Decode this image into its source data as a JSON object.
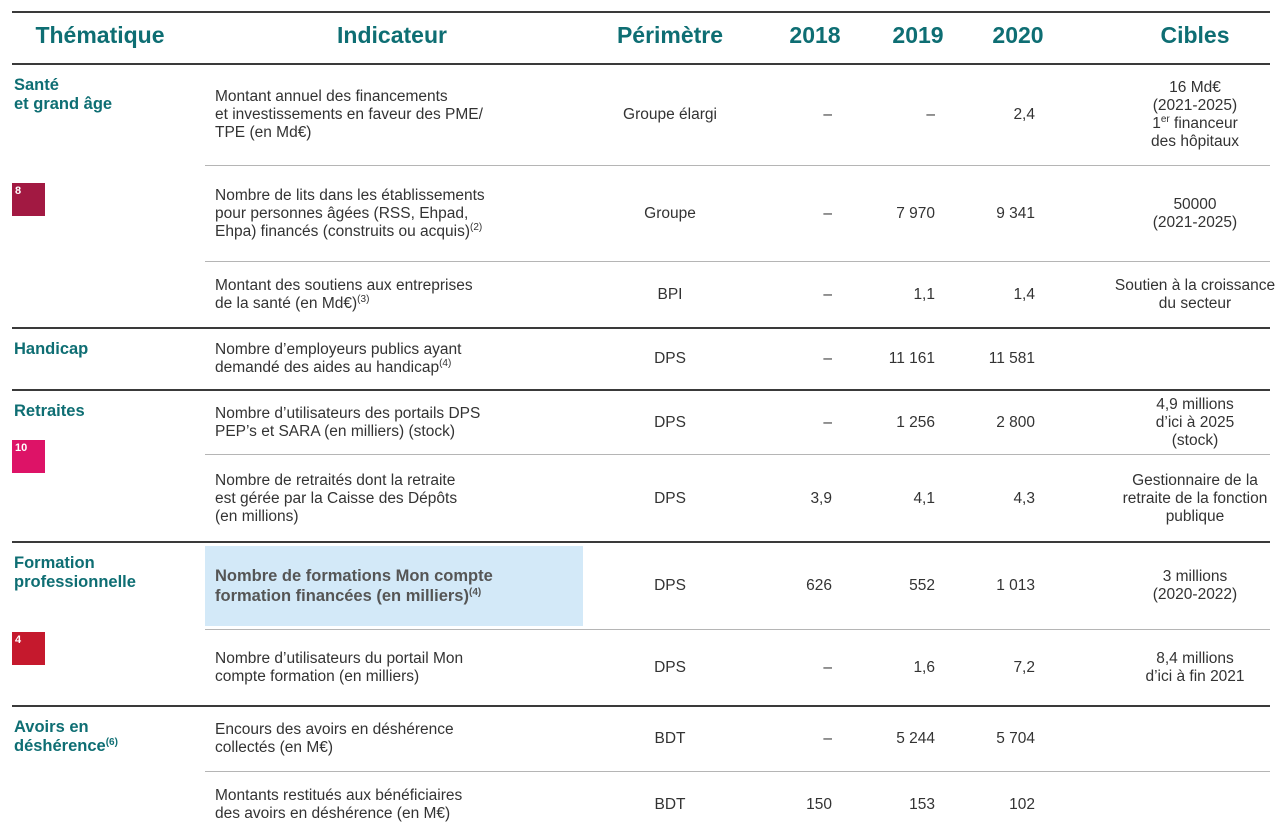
{
  "header": [
    "Thématique",
    "Indicateur",
    "Périmètre",
    "2018",
    "2019",
    "2020",
    "Cibles"
  ],
  "groups": [
    {
      "theme": [
        "Santé",
        "et grand âge"
      ],
      "sdg": {
        "label": "8",
        "color": "#a21942"
      },
      "rows": [
        {
          "indicator": [
            "Montant annuel des financements",
            "et investissements en faveur des PME/",
            "TPE (en Md€)"
          ],
          "perimeter": "Groupe élargi",
          "values": [
            "–",
            "–",
            "2,4"
          ],
          "target": [
            "16 Md€",
            "(2021-2025)",
            [
              "1",
              "er",
              " financeur"
            ],
            "des hôpitaux"
          ]
        },
        {
          "indicator": [
            "Nombre de lits dans les établissements",
            "pour personnes âgées (RSS, Ehpad,",
            [
              "Ehpa) financés (construits ou acquis)",
              "(2)"
            ]
          ],
          "perimeter": "Groupe",
          "values": [
            "–",
            "7 970",
            "9 341"
          ],
          "target": [
            "50000",
            "(2021-2025)"
          ]
        },
        {
          "indicator": [
            "Montant des soutiens aux entreprises",
            [
              "de la santé (en Md€)",
              "(3)"
            ]
          ],
          "perimeter": "BPI",
          "values": [
            "–",
            "1,1",
            "1,4"
          ],
          "target": [
            "Soutien à la croissance",
            "du secteur"
          ]
        }
      ]
    },
    {
      "theme": [
        "Handicap"
      ],
      "rows": [
        {
          "indicator": [
            "Nombre d’employeurs publics ayant",
            [
              "demandé des aides au handicap",
              "(4)"
            ]
          ],
          "perimeter": "DPS",
          "values": [
            "–",
            "11 161",
            "11 581"
          ],
          "target": []
        }
      ]
    },
    {
      "theme": [
        "Retraites"
      ],
      "sdg": {
        "label": "10",
        "color": "#dd1367"
      },
      "rows": [
        {
          "indicator": [
            "Nombre d’utilisateurs des portails DPS",
            "PEP’s et SARA (en milliers) (stock)"
          ],
          "perimeter": "DPS",
          "values": [
            "–",
            "1 256",
            "2 800"
          ],
          "target": [
            "4,9 millions",
            "d’ici à 2025",
            "(stock)"
          ]
        },
        {
          "indicator": [
            "Nombre de retraités dont la retraite",
            "est gérée par la Caisse des Dépôts",
            "(en millions)"
          ],
          "perimeter": "DPS",
          "values": [
            "3,9",
            "4,1",
            "4,3"
          ],
          "target": [
            "Gestionnaire de la",
            "retraite de la fonction",
            "publique"
          ]
        }
      ]
    },
    {
      "theme": [
        "Formation",
        "professionnelle"
      ],
      "sdg": {
        "label": "4",
        "color": "#c5192d"
      },
      "rows": [
        {
          "indicator": [
            "Nombre de formations Mon compte",
            [
              "formation financées (en milliers)",
              "(4)"
            ]
          ],
          "highlight": true,
          "perimeter": "DPS",
          "values": [
            "626",
            "552",
            "1 013"
          ],
          "target": [
            "3 millions",
            "(2020-2022)"
          ]
        },
        {
          "indicator": [
            "Nombre d’utilisateurs du portail Mon",
            "compte formation (en milliers)"
          ],
          "perimeter": "DPS",
          "values": [
            "–",
            "1,6",
            "7,2"
          ],
          "target": [
            "8,4 millions",
            "d’ici à fin 2021"
          ]
        }
      ]
    },
    {
      "theme": [
        "Avoirs en",
        [
          "déshérence",
          "(6)"
        ]
      ],
      "rows": [
        {
          "indicator": [
            "Encours des avoirs en déshérence",
            "collectés (en M€)"
          ],
          "perimeter": "BDT",
          "values": [
            "–",
            "5 244",
            "5 704"
          ],
          "target": []
        },
        {
          "indicator": [
            "Montants restitués aux bénéficiaires",
            "des avoirs en déshérence (en M€)"
          ],
          "perimeter": "BDT",
          "values": [
            "150",
            "153",
            "102"
          ],
          "target": []
        }
      ]
    }
  ]
}
